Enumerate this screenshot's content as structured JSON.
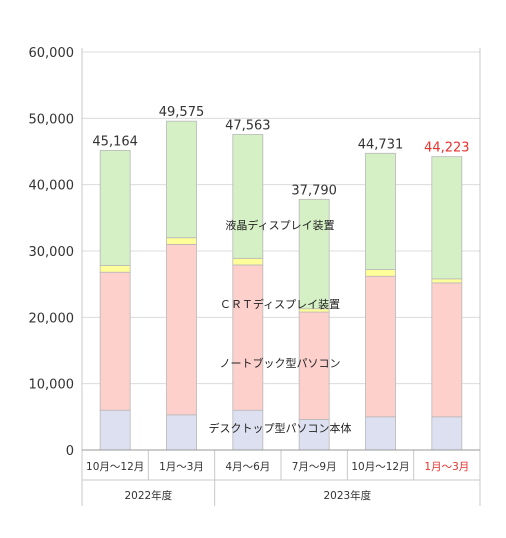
{
  "chart_data": {
    "type": "bar",
    "stacked": true,
    "categories": [
      "10月～12月",
      "1月～3月",
      "4月～6月",
      "7月～9月",
      "10月～12月",
      "1月～3月"
    ],
    "groups": [
      {
        "label": "2022年度",
        "start": 0,
        "end": 1
      },
      {
        "label": "2023年度",
        "start": 2,
        "end": 5
      }
    ],
    "series": [
      {
        "name": "デスクトップ型パソコン本体",
        "color": "#dde0f0",
        "values": [
          6000,
          5300,
          6000,
          4600,
          5000,
          5000
        ]
      },
      {
        "name": "ノートブック型パソコン",
        "color": "#fdd0cc",
        "values": [
          20800,
          25700,
          21900,
          16200,
          21200,
          20200
        ]
      },
      {
        "name": "ＣＲＴディスプレイ装置",
        "color": "#ffff99",
        "values": [
          1000,
          1000,
          1000,
          500,
          1000,
          600
        ]
      },
      {
        "name": "液晶ディスプレイ装置",
        "color": "#d4f0c4",
        "values": [
          17364,
          17575,
          18663,
          16490,
          17531,
          18423
        ]
      }
    ],
    "totals": [
      "45,164",
      "49,575",
      "47,563",
      "37,790",
      "44,731",
      "44,223"
    ],
    "highlight_index": 5,
    "highlight_color": "#e8322c",
    "ylim": [
      0,
      60000
    ],
    "yticks": [
      {
        "value": 0,
        "label": "0"
      },
      {
        "value": 10000,
        "label": "10,000"
      },
      {
        "value": 20000,
        "label": "20,000"
      },
      {
        "value": 30000,
        "label": "30,000"
      },
      {
        "value": 40000,
        "label": "40,000"
      },
      {
        "value": 50000,
        "label": "50,000"
      },
      {
        "value": 60000,
        "label": "60,000"
      }
    ],
    "grid": true
  }
}
